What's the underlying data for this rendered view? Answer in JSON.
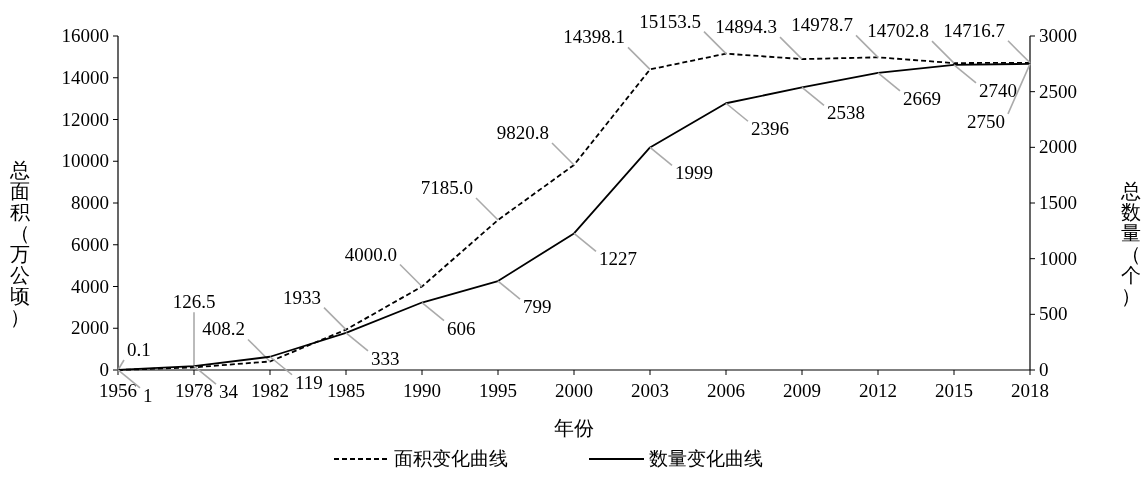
{
  "chart_data": {
    "type": "line",
    "xlabel": "年份",
    "ylabel": "总面积（万公顷）",
    "y2label": "总数量（个）",
    "categories": [
      "1956",
      "1978",
      "1982",
      "1985",
      "1990",
      "1995",
      "2000",
      "2003",
      "2006",
      "2009",
      "2012",
      "2015",
      "2018"
    ],
    "series": [
      {
        "name": "面积变化曲线",
        "color": "#000000",
        "line_style": "dashed",
        "values": [
          0.1,
          126.5,
          408.2,
          1933,
          4000.0,
          7185.0,
          9820.8,
          14398.1,
          15153.5,
          14894.3,
          14978.7,
          14702.8,
          14716.7
        ],
        "value_labels": [
          "0.1",
          "126.5",
          "408.2",
          "1933",
          "4000.0",
          "7185.0",
          "9820.8",
          "14398.1",
          "15153.5",
          "14894.3",
          "14978.7",
          "14702.8",
          "14716.7"
        ]
      },
      {
        "name": "数量变化曲线",
        "color": "#000000",
        "line_style": "solid",
        "axis": "y2",
        "values": [
          1,
          34,
          119,
          333,
          606,
          799,
          1227,
          1999,
          2396,
          2538,
          2669,
          2740,
          2750
        ],
        "value_labels": [
          "1",
          "34",
          "119",
          "333",
          "606",
          "799",
          "1227",
          "1999",
          "2396",
          "2538",
          "2669",
          "2740",
          "2750"
        ]
      }
    ],
    "ylim": [
      0,
      16000
    ],
    "yticks": [
      0,
      2000,
      4000,
      6000,
      8000,
      10000,
      12000,
      14000,
      16000
    ],
    "y2lim": [
      0,
      3000
    ],
    "y2ticks": [
      0,
      500,
      1000,
      1500,
      2000,
      2500,
      3000
    ],
    "legend": "bottom",
    "grid": false,
    "marker": "none"
  }
}
